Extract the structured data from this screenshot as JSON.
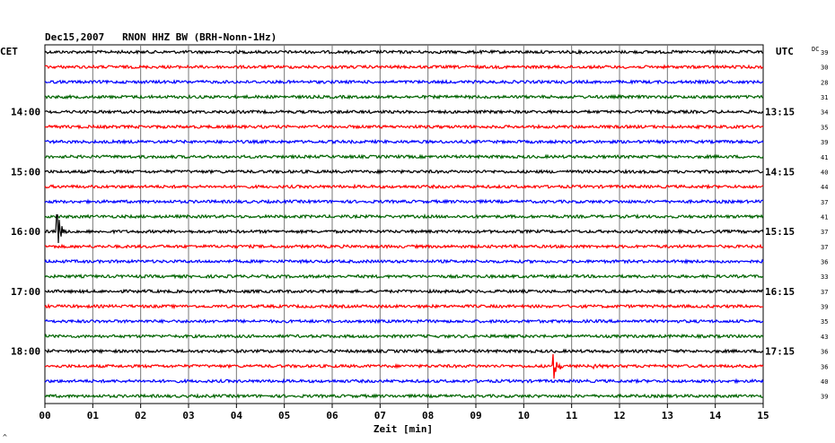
{
  "header": {
    "title": "Dec15,2007   RNON HHZ BW (BRH-Nonn-1Hz)",
    "left_tz": "CET",
    "right_tz": "UTC",
    "dc_label": "DC"
  },
  "chart_data": {
    "type": "line",
    "xlabel": "Zeit [min]",
    "xlim": [
      0,
      15
    ],
    "x_ticks": [
      "00",
      "01",
      "02",
      "03",
      "04",
      "05",
      "06",
      "07",
      "08",
      "09",
      "10",
      "11",
      "12",
      "13",
      "14",
      "15"
    ],
    "trace_colors": [
      "#000000",
      "#ff0000",
      "#0000ff",
      "#006400"
    ],
    "traces_count": 24,
    "left_time_labels": [
      {
        "trace": 4,
        "text": "14:00"
      },
      {
        "trace": 8,
        "text": "15:00"
      },
      {
        "trace": 12,
        "text": "16:00"
      },
      {
        "trace": 16,
        "text": "17:00"
      },
      {
        "trace": 20,
        "text": "18:00"
      }
    ],
    "right_time_labels": [
      {
        "trace": 4,
        "text": "13:15"
      },
      {
        "trace": 8,
        "text": "14:15"
      },
      {
        "trace": 12,
        "text": "15:15"
      },
      {
        "trace": 16,
        "text": "16:15"
      },
      {
        "trace": 20,
        "text": "17:15"
      }
    ],
    "dc_values": [
      "39",
      "30",
      "28",
      "31",
      "34",
      "35",
      "39",
      "41",
      "40",
      "44",
      "37",
      "41",
      "37",
      "37",
      "36",
      "33",
      "37",
      "39",
      "35",
      "43",
      "36",
      "36",
      "40",
      "39"
    ],
    "events": [
      {
        "trace": 12,
        "minute": 0.25,
        "amplitude": 3.5
      },
      {
        "trace": 21,
        "minute": 10.6,
        "amplitude": 3.2
      },
      {
        "trace": 21,
        "minute": 11.45,
        "amplitude": 0.6
      },
      {
        "trace": 21,
        "minute": 12.55,
        "amplitude": 0.4
      }
    ]
  },
  "footer": {
    "corner_mark": "^"
  }
}
